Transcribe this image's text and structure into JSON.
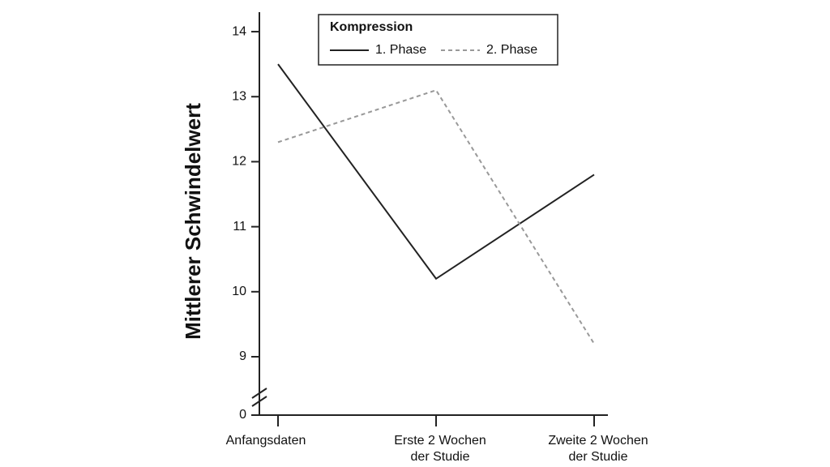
{
  "chart_data": {
    "type": "line",
    "y_label": "Mittlerer Schwindelwert",
    "categories": [
      [
        "Anfangsdaten"
      ],
      [
        "Erste 2 Wochen",
        "der Studie"
      ],
      [
        "Zweite 2 Wochen",
        "der Studie"
      ]
    ],
    "series": [
      {
        "name": "1. Phase",
        "color": "#222222",
        "dash": false,
        "values": [
          13.5,
          10.2,
          11.8
        ]
      },
      {
        "name": "2. Phase",
        "color": "#999999",
        "dash": true,
        "values": [
          12.3,
          13.1,
          9.2
        ]
      }
    ],
    "legend_title": "Kompression",
    "legend_position": "top",
    "ylim": [
      0,
      14.3
    ],
    "yticks": [
      0,
      9,
      10,
      11,
      12,
      13,
      14
    ],
    "axis_break": true
  }
}
